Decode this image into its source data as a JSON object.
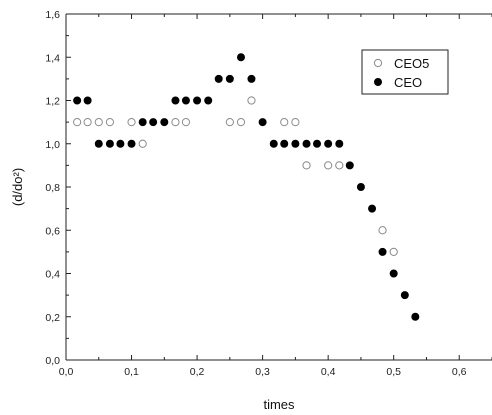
{
  "chart_data": {
    "type": "scatter",
    "title": "",
    "xlabel": "times",
    "ylabel": "(d/do²)",
    "xlim": [
      0.0,
      0.65
    ],
    "ylim": [
      0.0,
      1.6
    ],
    "xticks": [
      "0,0",
      "0,1",
      "0,2",
      "0,3",
      "0,4",
      "0,5",
      "0,6"
    ],
    "xtick_values": [
      0.0,
      0.1,
      0.2,
      0.3,
      0.4,
      0.5,
      0.6
    ],
    "yticks": [
      "0,0",
      "0,2",
      "0,4",
      "0,6",
      "0,8",
      "1,0",
      "1,2",
      "1,4",
      "1,6"
    ],
    "ytick_values": [
      0.0,
      0.2,
      0.4,
      0.6,
      0.8,
      1.0,
      1.2,
      1.4,
      1.6
    ],
    "grid": false,
    "legend_position": "top-right",
    "series": [
      {
        "name": "CEO5",
        "marker": "open-circle",
        "color": "#888888",
        "points": [
          [
            0.017,
            1.1
          ],
          [
            0.033,
            1.1
          ],
          [
            0.05,
            1.1
          ],
          [
            0.067,
            1.1
          ],
          [
            0.1,
            1.1
          ],
          [
            0.117,
            1.0
          ],
          [
            0.167,
            1.1
          ],
          [
            0.183,
            1.1
          ],
          [
            0.25,
            1.1
          ],
          [
            0.267,
            1.1
          ],
          [
            0.283,
            1.2
          ],
          [
            0.333,
            1.1
          ],
          [
            0.35,
            1.1
          ],
          [
            0.367,
            0.9
          ],
          [
            0.4,
            0.9
          ],
          [
            0.417,
            0.9
          ],
          [
            0.483,
            0.6
          ],
          [
            0.5,
            0.5
          ]
        ]
      },
      {
        "name": "CEO",
        "marker": "filled-circle",
        "color": "#000000",
        "points": [
          [
            0.017,
            1.2
          ],
          [
            0.033,
            1.2
          ],
          [
            0.05,
            1.0
          ],
          [
            0.067,
            1.0
          ],
          [
            0.083,
            1.0
          ],
          [
            0.1,
            1.0
          ],
          [
            0.117,
            1.1
          ],
          [
            0.133,
            1.1
          ],
          [
            0.15,
            1.1
          ],
          [
            0.167,
            1.2
          ],
          [
            0.183,
            1.2
          ],
          [
            0.2,
            1.2
          ],
          [
            0.217,
            1.2
          ],
          [
            0.233,
            1.3
          ],
          [
            0.25,
            1.3
          ],
          [
            0.267,
            1.4
          ],
          [
            0.283,
            1.3
          ],
          [
            0.3,
            1.1
          ],
          [
            0.317,
            1.0
          ],
          [
            0.333,
            1.0
          ],
          [
            0.35,
            1.0
          ],
          [
            0.367,
            1.0
          ],
          [
            0.383,
            1.0
          ],
          [
            0.4,
            1.0
          ],
          [
            0.417,
            1.0
          ],
          [
            0.433,
            0.9
          ],
          [
            0.45,
            0.8
          ],
          [
            0.467,
            0.7
          ],
          [
            0.483,
            0.5
          ],
          [
            0.5,
            0.4
          ],
          [
            0.517,
            0.3
          ],
          [
            0.533,
            0.2
          ]
        ]
      }
    ]
  }
}
